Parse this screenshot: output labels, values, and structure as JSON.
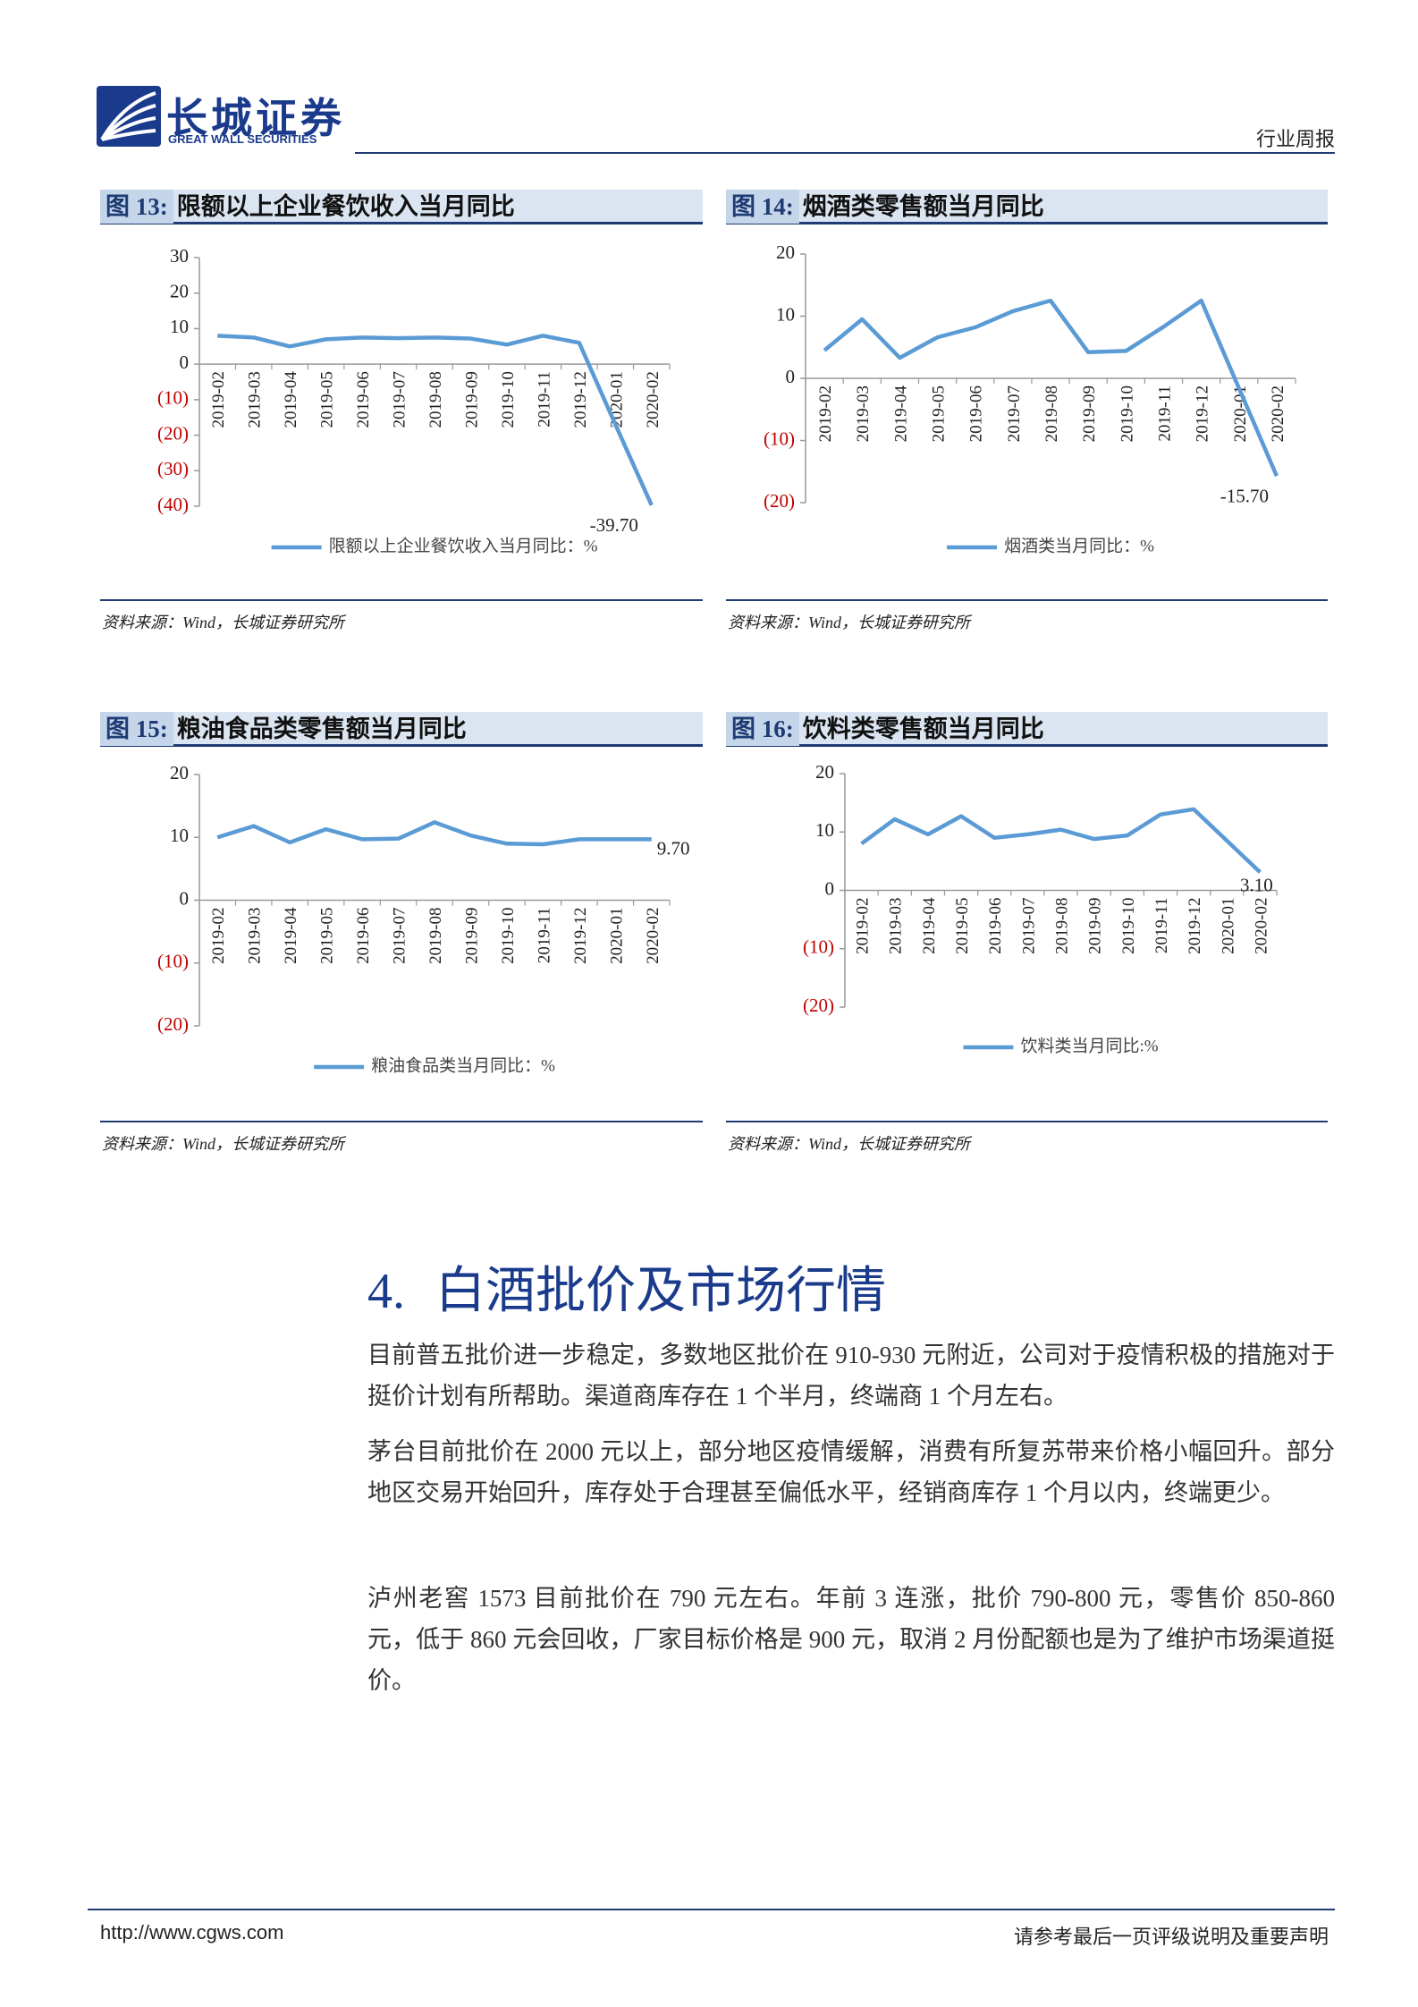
{
  "header": {
    "logo_cn": "长城证券",
    "logo_en": "GREAT WALL SECURITIES",
    "report_type": "行业周报"
  },
  "section": {
    "number": "4.",
    "title": "白酒批价及市场行情"
  },
  "paragraphs": [
    "目前普五批价进一步稳定，多数地区批价在 910-930 元附近，公司对于疫情积极的措施对于挺价计划有所帮助。渠道商库存在 1 个半月，终端商 1 个月左右。",
    "茅台目前批价在 2000 元以上，部分地区疫情缓解，消费有所复苏带来价格小幅回升。部分地区交易开始回升，库存处于合理甚至偏低水平，经销商库存 1 个月以内，终端更少。",
    "泸州老窖 1573 目前批价在 790 元左右。年前 3 连涨，批价 790-800 元，零售价 850-860 元，低于 860 元会回收，厂家目标价格是 900 元，取消 2 月份配额也是为了维护市场渠道挺价。"
  ],
  "footer": {
    "url": "http://www.cgws.com",
    "disclaimer": "请参考最后一页评级说明及重要声明"
  },
  "chart_data": [
    {
      "type": "line",
      "figure_label": "图 13:",
      "title": "限额以上企业餐饮收入当月同比",
      "source": "资料来源：Wind，长城证券研究所",
      "categories": [
        "2019-02",
        "2019-03",
        "2019-04",
        "2019-05",
        "2019-06",
        "2019-07",
        "2019-08",
        "2019-09",
        "2019-10",
        "2019-11",
        "2019-12",
        "2020-01",
        "2020-02"
      ],
      "series": [
        {
          "name": "限额以上企业餐饮收入当月同比：%",
          "color": "#5b9bd5",
          "values": [
            8,
            7.5,
            5,
            7,
            7.5,
            7.3,
            7.5,
            7.2,
            5.5,
            8,
            6,
            -17,
            -39.7
          ],
          "value_labels": [
            null,
            null,
            null,
            null,
            null,
            null,
            null,
            null,
            null,
            null,
            null,
            null,
            "-39.70"
          ]
        }
      ],
      "ylim": [
        -40,
        30
      ],
      "yticks": [
        30,
        20,
        10,
        0,
        {
          "value": -10,
          "label": "(10)"
        },
        {
          "value": -20,
          "label": "(20)"
        },
        {
          "value": -30,
          "label": "(30)"
        },
        {
          "value": -40,
          "label": "(40)"
        }
      ],
      "negative_tick_color": "#c00000",
      "legend": "bottom"
    },
    {
      "type": "line",
      "figure_label": "图 14:",
      "title": "烟酒类零售额当月同比",
      "source": "资料来源：Wind，长城证券研究所",
      "categories": [
        "2019-02",
        "2019-03",
        "2019-04",
        "2019-05",
        "2019-06",
        "2019-07",
        "2019-08",
        "2019-09",
        "2019-10",
        "2019-11",
        "2019-12",
        "2020-01",
        "2020-02"
      ],
      "series": [
        {
          "name": "烟酒类当月同比：%",
          "color": "#5b9bd5",
          "values": [
            4.5,
            9.5,
            3.3,
            6.6,
            8.2,
            10.8,
            12.5,
            4.2,
            4.4,
            8.3,
            12.5,
            -1.6,
            -15.7
          ],
          "value_labels": [
            null,
            null,
            null,
            null,
            null,
            null,
            null,
            null,
            null,
            null,
            null,
            null,
            "-15.70"
          ]
        }
      ],
      "ylim": [
        -20,
        20
      ],
      "yticks": [
        20,
        10,
        0,
        {
          "value": -10,
          "label": "(10)"
        },
        {
          "value": -20,
          "label": "(20)"
        }
      ],
      "negative_tick_color": "#c00000",
      "legend": "bottom"
    },
    {
      "type": "line",
      "figure_label": "图 15:",
      "title": "粮油食品类零售额当月同比",
      "source": "资料来源：Wind，长城证券研究所",
      "categories": [
        "2019-02",
        "2019-03",
        "2019-04",
        "2019-05",
        "2019-06",
        "2019-07",
        "2019-08",
        "2019-09",
        "2019-10",
        "2019-11",
        "2019-12",
        "2020-01",
        "2020-02"
      ],
      "series": [
        {
          "name": "粮油食品类当月同比：%",
          "color": "#5b9bd5",
          "values": [
            10,
            11.8,
            9.2,
            11.3,
            9.7,
            9.8,
            12.4,
            10.3,
            9,
            8.9,
            9.7,
            9.7,
            9.7
          ],
          "value_labels": [
            null,
            null,
            null,
            null,
            null,
            null,
            null,
            null,
            null,
            null,
            null,
            null,
            "9.70"
          ]
        }
      ],
      "ylim": [
        -20,
        20
      ],
      "yticks": [
        20,
        10,
        0,
        {
          "value": -10,
          "label": "(10)"
        },
        {
          "value": -20,
          "label": "(20)"
        }
      ],
      "negative_tick_color": "#c00000",
      "legend": "bottom"
    },
    {
      "type": "line",
      "figure_label": "图 16:",
      "title": "饮料类零售额当月同比",
      "source": "资料来源：Wind，长城证券研究所",
      "categories": [
        "2019-02",
        "2019-03",
        "2019-04",
        "2019-05",
        "2019-06",
        "2019-07",
        "2019-08",
        "2019-09",
        "2019-10",
        "2019-11",
        "2019-12",
        "2020-01",
        "2020-02"
      ],
      "series": [
        {
          "name": "饮料类当月同比:%",
          "color": "#5b9bd5",
          "values": [
            8,
            12.2,
            9.6,
            12.7,
            9,
            9.6,
            10.4,
            8.8,
            9.4,
            13,
            13.9,
            8.5,
            3.1
          ],
          "value_labels": [
            null,
            null,
            null,
            null,
            null,
            null,
            null,
            null,
            null,
            null,
            null,
            null,
            "3.10"
          ]
        }
      ],
      "ylim": [
        -20,
        20
      ],
      "yticks": [
        20,
        10,
        0,
        {
          "value": -10,
          "label": "(10)"
        },
        {
          "value": -20,
          "label": "(20)"
        }
      ],
      "negative_tick_color": "#c00000",
      "legend": "bottom"
    }
  ]
}
